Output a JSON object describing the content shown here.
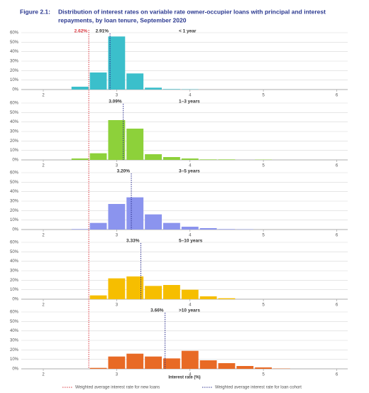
{
  "figure_label": "Figure 2.1:",
  "title_lines": [
    "Distribution of interest rates on variable rate owner-occupier loans with principal and interest",
    "repayments, by loan tenure, September 2020"
  ],
  "xlabel": "Interest rate (%)",
  "new_loan_rate": {
    "value": 2.62,
    "label": "2.62%"
  },
  "legend": [
    "Weighted average interest rate for new loans",
    "Weighted average interest rate for loan cohort"
  ],
  "legend_colors": [
    "#d9363e",
    "#2b2f8e"
  ],
  "chart_data": [
    {
      "type": "histogram",
      "title": "< 1 year",
      "color": "#3bbfcb",
      "cohort_rate": {
        "value": 2.91,
        "label": "2.91%"
      },
      "bins": [
        2.375,
        2.625,
        2.875,
        3.125,
        3.375,
        3.625,
        3.875,
        4.125,
        4.375,
        4.625,
        4.875,
        5.125,
        5.375
      ],
      "values": [
        3,
        18,
        56,
        17,
        2,
        0.5,
        0.3,
        0,
        0,
        0,
        0,
        0
      ],
      "xlim": [
        1.7,
        6.15
      ],
      "xticks": [
        2,
        3,
        4,
        5,
        6
      ],
      "ylim": [
        0,
        60
      ],
      "yticks": [
        {
          "value": 0,
          "label": "0%"
        },
        {
          "value": 10,
          "label": "10%"
        },
        {
          "value": 20,
          "label": "20%"
        },
        {
          "value": 30,
          "label": "30%"
        },
        {
          "value": 40,
          "label": "40%"
        },
        {
          "value": 50,
          "label": "50%"
        },
        {
          "value": 60,
          "label": "60%"
        }
      ],
      "grid": true
    },
    {
      "type": "histogram",
      "title": "1–3 years",
      "color": "#8dd13a",
      "cohort_rate": {
        "value": 3.09,
        "label": "3.09%"
      },
      "bins": [
        2.375,
        2.625,
        2.875,
        3.125,
        3.375,
        3.625,
        3.875,
        4.125,
        4.375,
        4.625,
        4.875,
        5.125,
        5.375
      ],
      "values": [
        1.5,
        7,
        42,
        33,
        6,
        3,
        1.5,
        0.5,
        0.5,
        0,
        0.3,
        0
      ],
      "xlim": [
        1.7,
        6.15
      ],
      "xticks": [
        2,
        3,
        4,
        5,
        6
      ],
      "ylim": [
        0,
        60
      ],
      "yticks": [
        {
          "value": 0,
          "label": "0%"
        },
        {
          "value": 10,
          "label": "10%"
        },
        {
          "value": 20,
          "label": "20%"
        },
        {
          "value": 30,
          "label": "30%"
        },
        {
          "value": 40,
          "label": "40%"
        },
        {
          "value": 50,
          "label": "50%"
        },
        {
          "value": 60,
          "label": "60%"
        }
      ],
      "grid": true
    },
    {
      "type": "histogram",
      "title": "3–5 years",
      "color": "#8b94ee",
      "cohort_rate": {
        "value": 3.2,
        "label": "3.20%"
      },
      "bins": [
        2.375,
        2.625,
        2.875,
        3.125,
        3.375,
        3.625,
        3.875,
        4.125,
        4.375,
        4.625,
        4.875,
        5.125,
        5.375
      ],
      "values": [
        0.5,
        7,
        27,
        34,
        16,
        7,
        3,
        1.5,
        0.5,
        0.3,
        0,
        0
      ],
      "xlim": [
        1.7,
        6.15
      ],
      "xticks": [
        2,
        3,
        4,
        5,
        6
      ],
      "ylim": [
        0,
        60
      ],
      "yticks": [
        {
          "value": 0,
          "label": "0%"
        },
        {
          "value": 10,
          "label": "10%"
        },
        {
          "value": 20,
          "label": "20%"
        },
        {
          "value": 30,
          "label": "30%"
        },
        {
          "value": 40,
          "label": "40%"
        },
        {
          "value": 50,
          "label": "50%"
        },
        {
          "value": 60,
          "label": "60%"
        }
      ],
      "grid": true
    },
    {
      "type": "histogram",
      "title": "5–10 years",
      "color": "#f6be00",
      "cohort_rate": {
        "value": 3.33,
        "label": "3.33%"
      },
      "bins": [
        2.375,
        2.625,
        2.875,
        3.125,
        3.375,
        3.625,
        3.875,
        4.125,
        4.375,
        4.625,
        4.875,
        5.125,
        5.375
      ],
      "values": [
        0,
        4,
        22,
        24,
        14,
        15,
        10,
        3,
        1,
        0,
        0,
        0
      ],
      "xlim": [
        1.7,
        6.15
      ],
      "xticks": [
        2,
        3,
        4,
        5,
        6
      ],
      "ylim": [
        0,
        60
      ],
      "yticks": [
        {
          "value": 0,
          "label": "0%"
        },
        {
          "value": 10,
          "label": "10%"
        },
        {
          "value": 20,
          "label": "20%"
        },
        {
          "value": 30,
          "label": "30%"
        },
        {
          "value": 40,
          "label": "40%"
        },
        {
          "value": 50,
          "label": "50%"
        },
        {
          "value": 60,
          "label": "60%"
        }
      ],
      "grid": true
    },
    {
      "type": "histogram",
      "title": ">10 years",
      "color": "#e86a25",
      "cohort_rate": {
        "value": 3.66,
        "label": "3.66%"
      },
      "bins": [
        2.375,
        2.625,
        2.875,
        3.125,
        3.375,
        3.625,
        3.875,
        4.125,
        4.375,
        4.625,
        4.875,
        5.125,
        5.375
      ],
      "values": [
        0,
        1,
        13,
        16,
        13,
        11,
        19,
        9,
        6,
        3,
        1.5,
        0.3
      ],
      "xlim": [
        1.7,
        6.15
      ],
      "xticks": [
        2,
        3,
        4,
        5,
        6
      ],
      "ylim": [
        0,
        60
      ],
      "yticks": [
        {
          "value": 0,
          "label": "0%"
        },
        {
          "value": 10,
          "label": "10%"
        },
        {
          "value": 20,
          "label": "20%"
        },
        {
          "value": 30,
          "label": "30%"
        },
        {
          "value": 40,
          "label": "40%"
        },
        {
          "value": 50,
          "label": "50%"
        },
        {
          "value": 60,
          "label": "60%"
        }
      ],
      "grid": true
    }
  ]
}
